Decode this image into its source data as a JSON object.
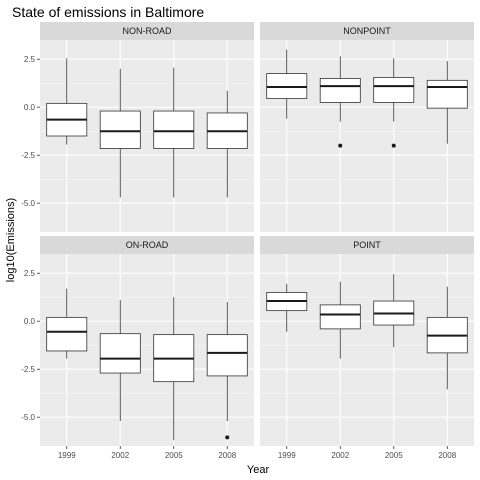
{
  "chart_data": {
    "type": "boxplot",
    "title": "State of emissions in Baltimore",
    "xlabel": "Year",
    "ylabel": "log10(Emissions)",
    "categories": [
      "1999",
      "2002",
      "2005",
      "2008"
    ],
    "ylim": [
      -6.5,
      3.5
    ],
    "yticks": [
      2.5,
      0.0,
      -2.5,
      -5.0
    ],
    "ytick_labels": [
      "2.5",
      "0.0",
      "-2.5",
      "-5.0"
    ],
    "grid": true,
    "facets": [
      {
        "name": "NON-ROAD",
        "boxes": [
          {
            "year": "1999",
            "lower": -1.95,
            "q1": -1.5,
            "median": -0.65,
            "q3": 0.2,
            "upper": 2.55,
            "outliers": []
          },
          {
            "year": "2002",
            "lower": -4.7,
            "q1": -2.15,
            "median": -1.25,
            "q3": -0.2,
            "upper": 2.0,
            "outliers": []
          },
          {
            "year": "2005",
            "lower": -4.7,
            "q1": -2.15,
            "median": -1.25,
            "q3": -0.2,
            "upper": 2.05,
            "outliers": []
          },
          {
            "year": "2008",
            "lower": -4.7,
            "q1": -2.15,
            "median": -1.25,
            "q3": -0.3,
            "upper": 0.85,
            "outliers": []
          }
        ]
      },
      {
        "name": "NONPOINT",
        "boxes": [
          {
            "year": "1999",
            "lower": -0.6,
            "q1": 0.45,
            "median": 1.05,
            "q3": 1.75,
            "upper": 3.0,
            "outliers": []
          },
          {
            "year": "2002",
            "lower": -0.75,
            "q1": 0.25,
            "median": 1.1,
            "q3": 1.5,
            "upper": 2.65,
            "outliers": [
              -2.0
            ]
          },
          {
            "year": "2005",
            "lower": -0.75,
            "q1": 0.25,
            "median": 1.1,
            "q3": 1.55,
            "upper": 2.55,
            "outliers": [
              -2.0
            ]
          },
          {
            "year": "2008",
            "lower": -1.9,
            "q1": -0.05,
            "median": 1.05,
            "q3": 1.4,
            "upper": 2.4,
            "outliers": []
          }
        ]
      },
      {
        "name": "ON-ROAD",
        "boxes": [
          {
            "year": "1999",
            "lower": -1.95,
            "q1": -1.55,
            "median": -0.55,
            "q3": 0.2,
            "upper": 1.7,
            "outliers": []
          },
          {
            "year": "2002",
            "lower": -5.2,
            "q1": -2.7,
            "median": -1.95,
            "q3": -0.65,
            "upper": 1.1,
            "outliers": []
          },
          {
            "year": "2005",
            "lower": -6.2,
            "q1": -3.15,
            "median": -1.95,
            "q3": -0.7,
            "upper": 1.25,
            "outliers": []
          },
          {
            "year": "2008",
            "lower": -5.2,
            "q1": -2.85,
            "median": -1.65,
            "q3": -0.7,
            "upper": 1.0,
            "outliers": [
              -6.05
            ]
          }
        ]
      },
      {
        "name": "POINT",
        "boxes": [
          {
            "year": "1999",
            "lower": -0.55,
            "q1": 0.55,
            "median": 1.05,
            "q3": 1.5,
            "upper": 1.95,
            "outliers": []
          },
          {
            "year": "2002",
            "lower": -1.95,
            "q1": -0.4,
            "median": 0.35,
            "q3": 0.85,
            "upper": 2.05,
            "outliers": []
          },
          {
            "year": "2005",
            "lower": -1.35,
            "q1": -0.2,
            "median": 0.4,
            "q3": 1.05,
            "upper": 2.45,
            "outliers": []
          },
          {
            "year": "2008",
            "lower": -3.55,
            "q1": -1.65,
            "median": -0.75,
            "q3": 0.2,
            "upper": 1.8,
            "outliers": []
          }
        ]
      }
    ]
  }
}
